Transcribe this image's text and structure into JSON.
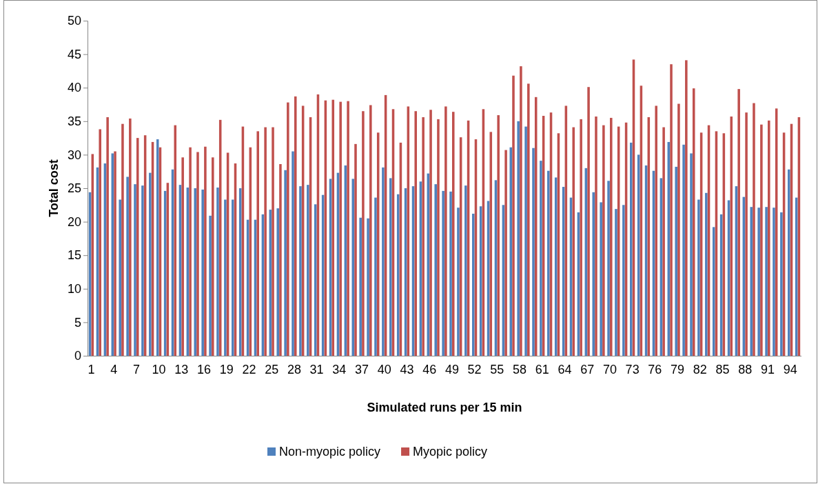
{
  "chart_data": {
    "type": "bar",
    "xlabel": "Simulated runs per 15 min",
    "ylabel": "Total cost",
    "categories": [
      "1",
      null,
      null,
      "4",
      null,
      null,
      "7",
      null,
      null,
      "10",
      null,
      null,
      "13",
      null,
      null,
      "16",
      null,
      null,
      "19",
      null,
      null,
      "22",
      null,
      null,
      "25",
      null,
      null,
      "28",
      null,
      null,
      "31",
      null,
      null,
      "34",
      null,
      null,
      "37",
      null,
      null,
      "40",
      null,
      null,
      "43",
      null,
      null,
      "46",
      null,
      null,
      "49",
      null,
      null,
      "52",
      null,
      null,
      "55",
      null,
      null,
      "58",
      null,
      null,
      "61",
      null,
      null,
      "64",
      null,
      null,
      "67",
      null,
      null,
      "70",
      null,
      null,
      "73",
      null,
      null,
      "76",
      null,
      null,
      "79",
      null,
      null,
      "82",
      null,
      null,
      "85",
      null,
      null,
      "88",
      null,
      null,
      "91",
      null,
      null,
      "94",
      null
    ],
    "series": [
      {
        "name": "Non-myopic policy",
        "color": "#4f81bd",
        "values": [
          24.4,
          28.1,
          28.7,
          30.2,
          23.3,
          26.7,
          25.6,
          25.4,
          27.3,
          32.3,
          24.6,
          27.8,
          25.5,
          25.1,
          25.0,
          24.8,
          20.9,
          25.1,
          23.3,
          23.3,
          25.0,
          20.3,
          20.3,
          21.1,
          21.8,
          22.0,
          27.7,
          30.5,
          25.3,
          25.5,
          22.6,
          24.0,
          26.4,
          27.3,
          28.4,
          26.4,
          20.6,
          20.5,
          23.6,
          28.1,
          26.5,
          24.1,
          25.0,
          25.3,
          26.0,
          27.2,
          25.6,
          24.6,
          24.5,
          22.1,
          25.4,
          21.2,
          22.3,
          23.1,
          26.2,
          22.5,
          31.1,
          35.0,
          34.2,
          31.0,
          29.1,
          27.6,
          26.6,
          25.2,
          23.6,
          21.4,
          28.0,
          24.4,
          22.9,
          26.1,
          21.9,
          22.5,
          31.8,
          30.0,
          28.4,
          27.6,
          26.5,
          31.9,
          28.2,
          31.5,
          30.2,
          23.3,
          24.3,
          19.2,
          21.1,
          23.2,
          25.3,
          23.7,
          22.2,
          22.1,
          22.2,
          22.1,
          21.4,
          27.8,
          23.6
        ]
      },
      {
        "name": "Myopic policy",
        "color": "#c0504d",
        "values": [
          30.1,
          33.8,
          35.6,
          30.5,
          34.6,
          35.4,
          32.5,
          32.9,
          31.9,
          31.1,
          25.8,
          34.4,
          29.6,
          31.1,
          30.4,
          31.2,
          29.6,
          35.2,
          30.3,
          28.7,
          34.2,
          31.1,
          33.5,
          34.1,
          34.1,
          28.6,
          37.8,
          38.7,
          37.3,
          35.6,
          39.0,
          38.1,
          38.2,
          37.9,
          38.0,
          31.6,
          36.5,
          37.4,
          33.3,
          38.9,
          36.8,
          31.8,
          37.2,
          36.5,
          35.6,
          36.7,
          35.3,
          37.2,
          36.4,
          32.6,
          35.1,
          32.3,
          36.8,
          33.4,
          35.9,
          30.7,
          41.8,
          43.2,
          40.6,
          38.6,
          35.8,
          36.3,
          33.2,
          37.3,
          34.1,
          35.3,
          40.1,
          35.7,
          34.4,
          35.5,
          34.2,
          34.8,
          44.2,
          40.3,
          35.6,
          37.3,
          34.1,
          43.5,
          37.6,
          44.1,
          39.9,
          33.3,
          34.4,
          33.5,
          33.2,
          35.7,
          39.8,
          36.3,
          37.7,
          34.5,
          35.1,
          36.9,
          33.3,
          34.6,
          35.6
        ]
      }
    ],
    "ylim": [
      0,
      50
    ],
    "yticks": [
      0,
      5,
      10,
      15,
      20,
      25,
      30,
      35,
      40,
      45,
      50
    ],
    "grid": false,
    "legend": "bottom"
  }
}
